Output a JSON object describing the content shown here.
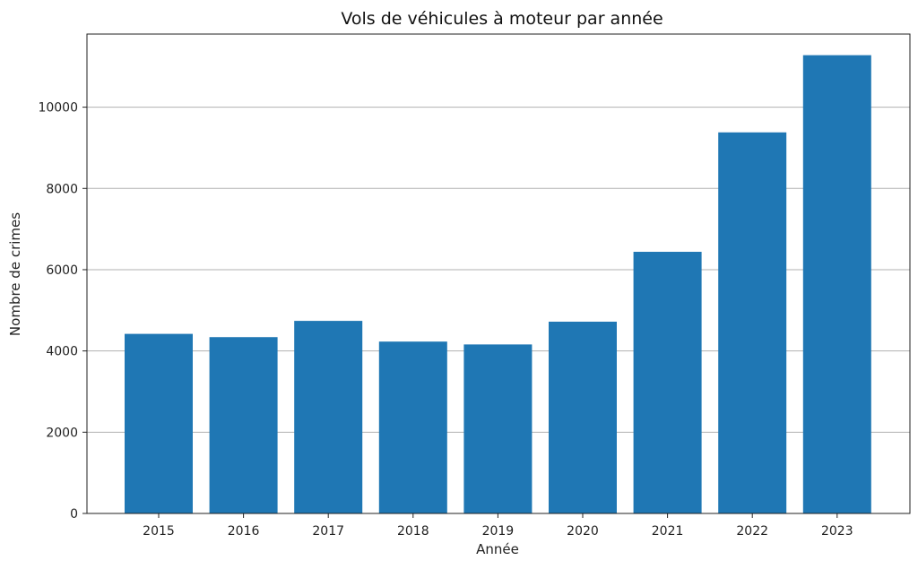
{
  "chart_data": {
    "type": "bar",
    "title": "Vols de véhicules à moteur par année",
    "xlabel": "Année",
    "ylabel": "Nombre de crimes",
    "categories": [
      "2015",
      "2016",
      "2017",
      "2018",
      "2019",
      "2020",
      "2021",
      "2022",
      "2023"
    ],
    "values": [
      4420,
      4340,
      4740,
      4230,
      4160,
      4720,
      6440,
      9380,
      11280
    ],
    "ylim": [
      0,
      11800
    ],
    "yticks": [
      0,
      2000,
      4000,
      6000,
      8000,
      10000
    ],
    "ytick_labels": [
      "0",
      "2000",
      "4000",
      "6000",
      "8000",
      "10000"
    ],
    "grid": "y",
    "bar_color": "#1f77b4",
    "legend": "none"
  }
}
